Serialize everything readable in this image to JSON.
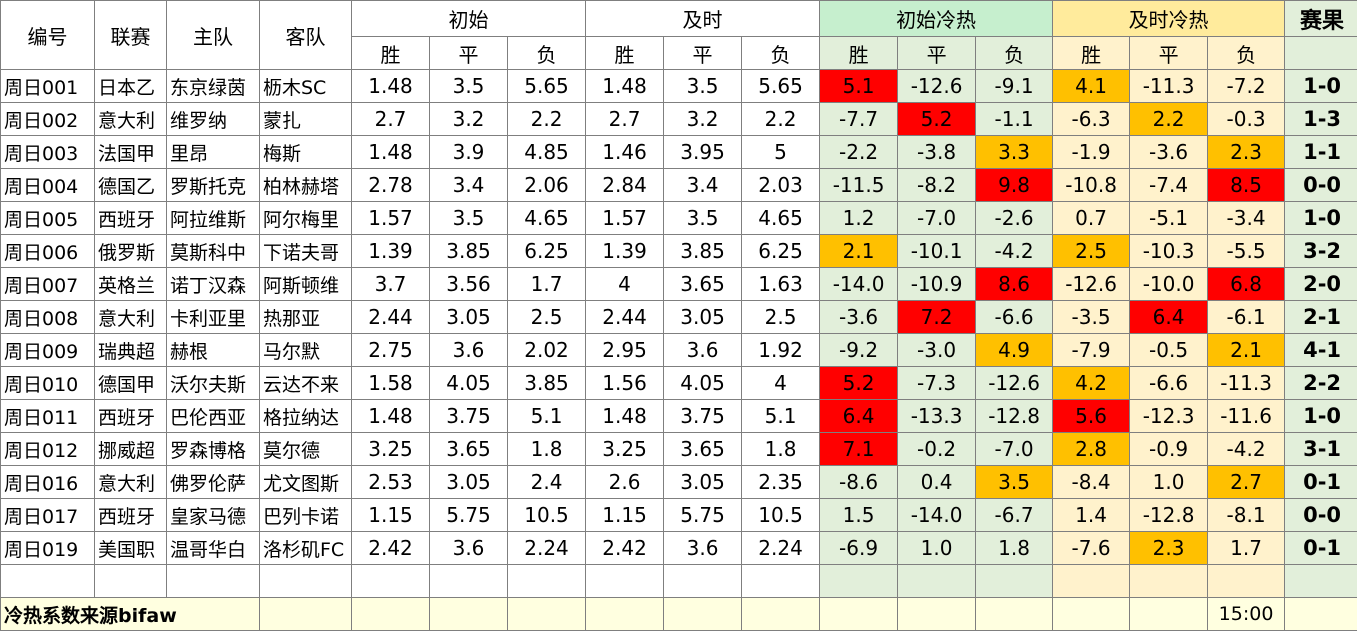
{
  "headers": {
    "id": "编号",
    "league": "联赛",
    "home": "主队",
    "away": "客队",
    "initial": "初始",
    "live": "及时",
    "initial_heat": "初始冷热",
    "live_heat": "及时冷热",
    "result": "赛果",
    "win": "胜",
    "draw": "平",
    "lose": "负"
  },
  "colors": {
    "hot_red": "#ff0000",
    "hot_orange": "#ffc000",
    "green_zone": "#e2efda",
    "yellow_zone": "#fff2cc"
  },
  "rows": [
    {
      "id": "周日001",
      "league": "日本乙",
      "home": "东京绿茵",
      "away": "枥木SC",
      "i": [
        "1.48",
        "3.5",
        "5.65"
      ],
      "l": [
        "1.48",
        "3.5",
        "5.65"
      ],
      "ih": [
        "5.1",
        "-12.6",
        "-9.1"
      ],
      "lh": [
        "4.1",
        "-11.3",
        "-7.2"
      ],
      "ihc": [
        "red",
        "",
        ""
      ],
      "lhc": [
        "orange",
        "",
        ""
      ],
      "res": "1-0"
    },
    {
      "id": "周日002",
      "league": "意大利",
      "home": "维罗纳",
      "away": "蒙扎",
      "i": [
        "2.7",
        "3.2",
        "2.2"
      ],
      "l": [
        "2.7",
        "3.2",
        "2.2"
      ],
      "ih": [
        "-7.7",
        "5.2",
        "-1.1"
      ],
      "lh": [
        "-6.3",
        "2.2",
        "-0.3"
      ],
      "ihc": [
        "",
        "red",
        ""
      ],
      "lhc": [
        "",
        "orange",
        ""
      ],
      "res": "1-3"
    },
    {
      "id": "周日003",
      "league": "法国甲",
      "home": "里昂",
      "away": "梅斯",
      "i": [
        "1.48",
        "3.9",
        "4.85"
      ],
      "l": [
        "1.46",
        "3.95",
        "5"
      ],
      "ih": [
        "-2.2",
        "-3.8",
        "3.3"
      ],
      "lh": [
        "-1.9",
        "-3.6",
        "2.3"
      ],
      "ihc": [
        "",
        "",
        "orange"
      ],
      "lhc": [
        "",
        "",
        "orange"
      ],
      "res": "1-1"
    },
    {
      "id": "周日004",
      "league": "德国乙",
      "home": "罗斯托克",
      "away": "柏林赫塔",
      "i": [
        "2.78",
        "3.4",
        "2.06"
      ],
      "l": [
        "2.84",
        "3.4",
        "2.03"
      ],
      "ih": [
        "-11.5",
        "-8.2",
        "9.8"
      ],
      "lh": [
        "-10.8",
        "-7.4",
        "8.5"
      ],
      "ihc": [
        "",
        "",
        "red"
      ],
      "lhc": [
        "",
        "",
        "red"
      ],
      "res": "0-0"
    },
    {
      "id": "周日005",
      "league": "西班牙",
      "home": "阿拉维斯",
      "away": "阿尔梅里",
      "i": [
        "1.57",
        "3.5",
        "4.65"
      ],
      "l": [
        "1.57",
        "3.5",
        "4.65"
      ],
      "ih": [
        "1.2",
        "-7.0",
        "-2.6"
      ],
      "lh": [
        "0.7",
        "-5.1",
        "-3.4"
      ],
      "ihc": [
        "",
        "",
        ""
      ],
      "lhc": [
        "",
        "",
        ""
      ],
      "res": "1-0"
    },
    {
      "id": "周日006",
      "league": "俄罗斯",
      "home": "莫斯科中",
      "away": "下诺夫哥",
      "i": [
        "1.39",
        "3.85",
        "6.25"
      ],
      "l": [
        "1.39",
        "3.85",
        "6.25"
      ],
      "ih": [
        "2.1",
        "-10.1",
        "-4.2"
      ],
      "lh": [
        "2.5",
        "-10.3",
        "-5.5"
      ],
      "ihc": [
        "orange",
        "",
        ""
      ],
      "lhc": [
        "orange",
        "",
        ""
      ],
      "res": "3-2"
    },
    {
      "id": "周日007",
      "league": "英格兰",
      "home": "诺丁汉森",
      "away": "阿斯顿维",
      "i": [
        "3.7",
        "3.56",
        "1.7"
      ],
      "l": [
        "4",
        "3.65",
        "1.63"
      ],
      "ih": [
        "-14.0",
        "-10.9",
        "8.6"
      ],
      "lh": [
        "-12.6",
        "-10.0",
        "6.8"
      ],
      "ihc": [
        "",
        "",
        "red"
      ],
      "lhc": [
        "",
        "",
        "red"
      ],
      "res": "2-0"
    },
    {
      "id": "周日008",
      "league": "意大利",
      "home": "卡利亚里",
      "away": "热那亚",
      "i": [
        "2.44",
        "3.05",
        "2.5"
      ],
      "l": [
        "2.44",
        "3.05",
        "2.5"
      ],
      "ih": [
        "-3.6",
        "7.2",
        "-6.6"
      ],
      "lh": [
        "-3.5",
        "6.4",
        "-6.1"
      ],
      "ihc": [
        "",
        "red",
        ""
      ],
      "lhc": [
        "",
        "red",
        ""
      ],
      "res": "2-1"
    },
    {
      "id": "周日009",
      "league": "瑞典超",
      "home": "赫根",
      "away": "马尔默",
      "i": [
        "2.75",
        "3.6",
        "2.02"
      ],
      "l": [
        "2.95",
        "3.6",
        "1.92"
      ],
      "ih": [
        "-9.2",
        "-3.0",
        "4.9"
      ],
      "lh": [
        "-7.9",
        "-0.5",
        "2.1"
      ],
      "ihc": [
        "",
        "",
        "orange"
      ],
      "lhc": [
        "",
        "",
        "orange"
      ],
      "res": "4-1"
    },
    {
      "id": "周日010",
      "league": "德国甲",
      "home": "沃尔夫斯",
      "away": "云达不来",
      "i": [
        "1.58",
        "4.05",
        "3.85"
      ],
      "l": [
        "1.56",
        "4.05",
        "4"
      ],
      "ih": [
        "5.2",
        "-7.3",
        "-12.6"
      ],
      "lh": [
        "4.2",
        "-6.6",
        "-11.3"
      ],
      "ihc": [
        "red",
        "",
        ""
      ],
      "lhc": [
        "orange",
        "",
        ""
      ],
      "res": "2-2"
    },
    {
      "id": "周日011",
      "league": "西班牙",
      "home": "巴伦西亚",
      "away": "格拉纳达",
      "i": [
        "1.48",
        "3.75",
        "5.1"
      ],
      "l": [
        "1.48",
        "3.75",
        "5.1"
      ],
      "ih": [
        "6.4",
        "-13.3",
        "-12.8"
      ],
      "lh": [
        "5.6",
        "-12.3",
        "-11.6"
      ],
      "ihc": [
        "red",
        "",
        ""
      ],
      "lhc": [
        "red",
        "",
        ""
      ],
      "res": "1-0"
    },
    {
      "id": "周日012",
      "league": "挪威超",
      "home": "罗森博格",
      "away": "莫尔德",
      "i": [
        "3.25",
        "3.65",
        "1.8"
      ],
      "l": [
        "3.25",
        "3.65",
        "1.8"
      ],
      "ih": [
        "7.1",
        "-0.2",
        "-7.0"
      ],
      "lh": [
        "2.8",
        "-0.9",
        "-4.2"
      ],
      "ihc": [
        "red",
        "",
        ""
      ],
      "lhc": [
        "orange",
        "",
        ""
      ],
      "res": "3-1"
    },
    {
      "id": "周日016",
      "league": "意大利",
      "home": "佛罗伦萨",
      "away": "尤文图斯",
      "i": [
        "2.53",
        "3.05",
        "2.4"
      ],
      "l": [
        "2.6",
        "3.05",
        "2.35"
      ],
      "ih": [
        "-8.6",
        "0.4",
        "3.5"
      ],
      "lh": [
        "-8.4",
        "1.0",
        "2.7"
      ],
      "ihc": [
        "",
        "",
        "orange"
      ],
      "lhc": [
        "",
        "",
        "orange"
      ],
      "res": "0-1"
    },
    {
      "id": "周日017",
      "league": "西班牙",
      "home": "皇家马德",
      "away": "巴列卡诺",
      "i": [
        "1.15",
        "5.75",
        "10.5"
      ],
      "l": [
        "1.15",
        "5.75",
        "10.5"
      ],
      "ih": [
        "1.5",
        "-14.0",
        "-6.7"
      ],
      "lh": [
        "1.4",
        "-12.8",
        "-8.1"
      ],
      "ihc": [
        "",
        "",
        ""
      ],
      "lhc": [
        "",
        "",
        ""
      ],
      "res": "0-0"
    },
    {
      "id": "周日019",
      "league": "美国职",
      "home": "温哥华白",
      "away": "洛杉矶FC",
      "i": [
        "2.42",
        "3.6",
        "2.24"
      ],
      "l": [
        "2.42",
        "3.6",
        "2.24"
      ],
      "ih": [
        "-6.9",
        "1.0",
        "1.8"
      ],
      "lh": [
        "-7.6",
        "2.3",
        "1.7"
      ],
      "ihc": [
        "",
        "",
        ""
      ],
      "lhc": [
        "",
        "orange",
        ""
      ],
      "res": "0-1"
    }
  ],
  "footer": {
    "source": "冷热系数来源bifaw",
    "time": "15:00"
  }
}
